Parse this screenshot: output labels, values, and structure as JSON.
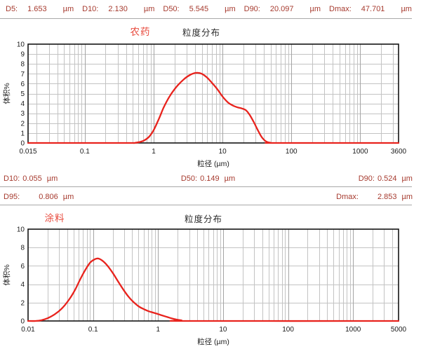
{
  "colors": {
    "stat_text": "#a63a2e",
    "curve": "#e8231d",
    "sample_title": "#e8493c",
    "title_text": "#2b2b2b",
    "grid_minor": "#c3c3c3",
    "grid_major": "#a4a4a4",
    "plot_border": "#141414",
    "separator": "#a9a9a9"
  },
  "stats_rows": [
    {
      "name": "overall",
      "items": [
        {
          "label": "D5:",
          "value": "1.653",
          "unit": "µm"
        },
        {
          "label": "D10:",
          "value": "2.130",
          "unit": "µm"
        },
        {
          "label": "D50:",
          "value": "5.545",
          "unit": "µm"
        },
        {
          "label": "D90:",
          "value": "20.097",
          "unit": "µm"
        },
        {
          "label": "Dmax:",
          "value": "47.701",
          "unit": "µm"
        }
      ]
    },
    {
      "name": "coating-d10-d50-d90",
      "items": [
        {
          "label": "D10:",
          "value": "0.055",
          "unit": "µm"
        },
        {
          "label": "D50:",
          "value": "0.149",
          "unit": "µm"
        },
        {
          "label": "D90:",
          "value": "0.524",
          "unit": "µm"
        }
      ]
    },
    {
      "name": "coating-d95-dmax",
      "items": [
        {
          "label": "D95:",
          "value": "0.806",
          "unit": "µm"
        },
        {
          "label": "Dmax:",
          "value": "2.853",
          "unit": "µm"
        }
      ]
    }
  ],
  "chart_data": [
    {
      "type": "line",
      "sample_label": "农药",
      "title": "粒度分布",
      "xlabel": "粒径 (µm)",
      "ylabel": "体积%",
      "x_scale": "log",
      "xlim": [
        0.015,
        3600
      ],
      "x_ticks": [
        0.015,
        0.1,
        1,
        10,
        100,
        1000,
        3600
      ],
      "x_tick_labels": [
        "0.015",
        "0.1",
        "1",
        "10",
        "100",
        "1000",
        "3600"
      ],
      "ylim": [
        0,
        10
      ],
      "y_ticks": [
        0,
        1,
        2,
        3,
        4,
        5,
        6,
        7,
        8,
        9,
        10
      ],
      "y_grid_step": 1,
      "grid": true,
      "series": [
        {
          "name": "农药",
          "points": [
            [
              0.015,
              0
            ],
            [
              0.35,
              0
            ],
            [
              0.55,
              0.02
            ],
            [
              0.7,
              0.2
            ],
            [
              0.85,
              0.6
            ],
            [
              1.0,
              1.3
            ],
            [
              1.2,
              2.5
            ],
            [
              1.4,
              3.6
            ],
            [
              1.7,
              4.7
            ],
            [
              2.1,
              5.6
            ],
            [
              2.7,
              6.4
            ],
            [
              3.4,
              6.9
            ],
            [
              4.2,
              7.1
            ],
            [
              5.0,
              7.0
            ],
            [
              6.0,
              6.6
            ],
            [
              7.0,
              6.1
            ],
            [
              8.5,
              5.4
            ],
            [
              10,
              4.7
            ],
            [
              12,
              4.1
            ],
            [
              14,
              3.8
            ],
            [
              16.5,
              3.6
            ],
            [
              19,
              3.5
            ],
            [
              22,
              3.3
            ],
            [
              25,
              2.8
            ],
            [
              28.5,
              2.1
            ],
            [
              32,
              1.4
            ],
            [
              37,
              0.6
            ],
            [
              43,
              0.15
            ],
            [
              50,
              0.02
            ],
            [
              60,
              0
            ],
            [
              3600,
              0
            ]
          ]
        }
      ]
    },
    {
      "type": "line",
      "sample_label": "涂料",
      "title": "粒度分布",
      "xlabel": "粒径 (µm)",
      "ylabel": "体积%",
      "x_scale": "log",
      "xlim": [
        0.01,
        5000
      ],
      "x_ticks": [
        0.01,
        0.1,
        1,
        10,
        100,
        1000,
        5000
      ],
      "x_tick_labels": [
        "0.01",
        "0.1",
        "1",
        "10",
        "100",
        "1000",
        "5000"
      ],
      "ylim": [
        0,
        10
      ],
      "y_ticks": [
        0,
        2,
        4,
        6,
        8,
        10
      ],
      "y_grid_step": 2,
      "grid": true,
      "series": [
        {
          "name": "涂料",
          "points": [
            [
              0.01,
              0
            ],
            [
              0.013,
              0
            ],
            [
              0.016,
              0.08
            ],
            [
              0.02,
              0.3
            ],
            [
              0.026,
              0.75
            ],
            [
              0.033,
              1.35
            ],
            [
              0.042,
              2.25
            ],
            [
              0.052,
              3.3
            ],
            [
              0.063,
              4.5
            ],
            [
              0.075,
              5.5
            ],
            [
              0.09,
              6.35
            ],
            [
              0.105,
              6.7
            ],
            [
              0.12,
              6.8
            ],
            [
              0.14,
              6.55
            ],
            [
              0.165,
              6.05
            ],
            [
              0.2,
              5.25
            ],
            [
              0.24,
              4.35
            ],
            [
              0.29,
              3.45
            ],
            [
              0.35,
              2.65
            ],
            [
              0.42,
              2.05
            ],
            [
              0.5,
              1.6
            ],
            [
              0.6,
              1.3
            ],
            [
              0.72,
              1.05
            ],
            [
              0.9,
              0.85
            ],
            [
              1.1,
              0.65
            ],
            [
              1.4,
              0.42
            ],
            [
              1.8,
              0.2
            ],
            [
              2.3,
              0.06
            ],
            [
              2.85,
              0
            ],
            [
              5000,
              0
            ]
          ]
        }
      ]
    }
  ]
}
